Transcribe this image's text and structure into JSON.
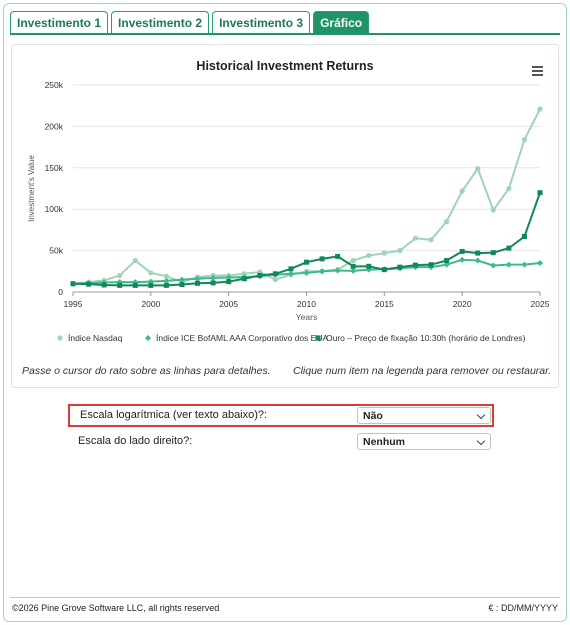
{
  "tabs": [
    {
      "label": "Investimento 1",
      "active": false
    },
    {
      "label": "Investimento 2",
      "active": false
    },
    {
      "label": "Investimento 3",
      "active": false
    },
    {
      "label": "Gráfico",
      "active": true
    }
  ],
  "chart_data": {
    "type": "line",
    "title": "Historical Investment Returns",
    "xlabel": "Years",
    "ylabel": "Investment's Value",
    "xlim": [
      1995,
      2025
    ],
    "ylim": [
      0,
      250000
    ],
    "x_ticks": [
      1995,
      2000,
      2005,
      2010,
      2015,
      2020,
      2025
    ],
    "y_ticks": [
      0,
      50000,
      100000,
      150000,
      200000,
      250000
    ],
    "y_tick_labels": [
      "0",
      "50k",
      "100k",
      "150k",
      "200k",
      "250k"
    ],
    "grid": "horizontal",
    "legend_position": "bottom",
    "x": [
      1995,
      1996,
      1997,
      1998,
      1999,
      2000,
      2001,
      2002,
      2003,
      2004,
      2005,
      2006,
      2007,
      2008,
      2009,
      2010,
      2011,
      2012,
      2013,
      2014,
      2015,
      2016,
      2017,
      2018,
      2019,
      2020,
      2021,
      2022,
      2023,
      2024,
      2025
    ],
    "series": [
      {
        "name": "Índice Nasdaq",
        "color": "#9fd4b8",
        "marker": "circle",
        "values": [
          10000,
          12000,
          14000,
          20000,
          38000,
          23000,
          19000,
          12000,
          18000,
          20000,
          20000,
          22000,
          24000,
          15000,
          21000,
          25000,
          25000,
          27000,
          38000,
          44000,
          47000,
          50000,
          65000,
          63000,
          85000,
          122000,
          149000,
          99000,
          125000,
          184000,
          221000
        ]
      },
      {
        "name": "Índice ICE BofAML AAA Corporativo dos EUA",
        "color": "#3dba85",
        "marker": "diamond",
        "values": [
          10000,
          10500,
          11500,
          12000,
          12000,
          12500,
          13500,
          15000,
          16000,
          17000,
          17500,
          18000,
          19000,
          21000,
          22000,
          23000,
          25000,
          26000,
          25500,
          27000,
          27500,
          28500,
          30000,
          30000,
          33000,
          39000,
          38000,
          32000,
          33000,
          33000,
          35000
        ]
      },
      {
        "name": "Ouro – Preço de fixação 10:30h (horário de Londres)",
        "color": "#11875a",
        "marker": "square",
        "values": [
          10000,
          9500,
          8500,
          8000,
          8000,
          8000,
          8000,
          9000,
          10500,
          11000,
          12500,
          16000,
          20000,
          22000,
          28000,
          36000,
          40000,
          43000,
          31000,
          31000,
          27000,
          30000,
          32500,
          33000,
          38000,
          49000,
          47000,
          47500,
          53000,
          67000,
          120000
        ]
      }
    ]
  },
  "hints": {
    "hover": "Passe o cursor do rato sobre as linhas para detalhes.",
    "legend": "Clique num item na legenda para remover ou restaurar."
  },
  "controls": {
    "log_scale_label": "Escala logarítmica (ver texto abaixo)?:",
    "log_scale_value": "Não",
    "right_scale_label": "Escala do lado direito?:",
    "right_scale_value": "Nenhum"
  },
  "footer": {
    "copyright": "©2026 Pine Grove Software LLC, all rights reserved",
    "format": "€ : DD/MM/YYYY"
  }
}
